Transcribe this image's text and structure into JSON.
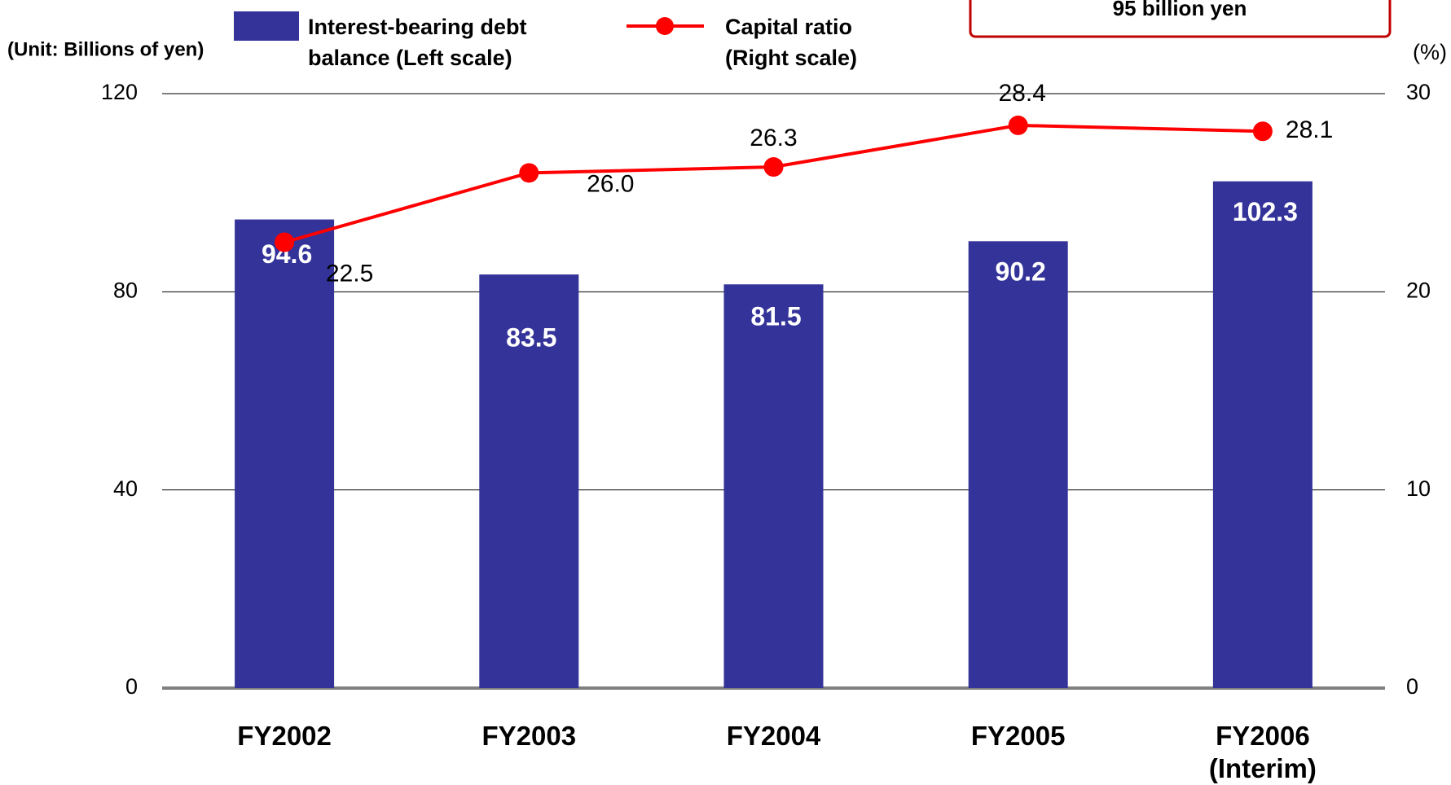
{
  "chart_data": {
    "type": "bar_line",
    "y_axis_label": "(Unit: Billions of yen)",
    "y2_axis_label": "(%)",
    "annotation": "95 billion yen",
    "categories": [
      "FY2002",
      "FY2003",
      "FY2004",
      "FY2005",
      "FY2006 (Interim)"
    ],
    "series": [
      {
        "name": "Interest-bearing debt balance (Left scale)",
        "type": "bar",
        "color": "#333399",
        "values": [
          94.6,
          83.5,
          81.5,
          90.2,
          102.3
        ]
      },
      {
        "name": "Capital ratio (Right scale)",
        "type": "line",
        "color": "#ff0000",
        "axis": "y2",
        "values": [
          22.5,
          26.0,
          26.3,
          28.4,
          28.1
        ],
        "value_labels": [
          "22.5",
          "26.0",
          "26.3",
          "28.4",
          "28.1"
        ]
      }
    ],
    "ylim": [
      0,
      120
    ],
    "yticks": [
      0,
      40,
      80,
      120
    ],
    "y2lim": [
      0,
      30
    ],
    "y2ticks": [
      0,
      10,
      20,
      30
    ],
    "grid": true
  }
}
